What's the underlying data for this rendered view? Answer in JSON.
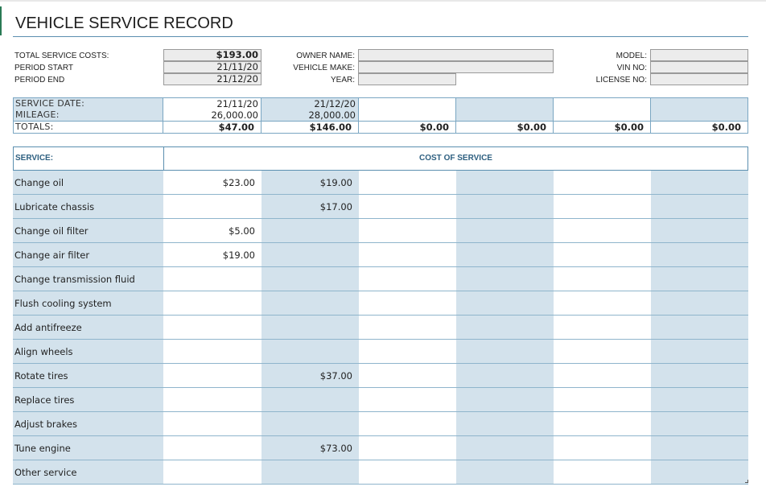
{
  "title": "VEHICLE SERVICE RECORD",
  "summary": {
    "total_service_costs_label": "TOTAL SERVICE COSTS:",
    "total_service_costs_value": "$193.00",
    "period_start_label": "PERIOD START",
    "period_start_value": "21/11/20",
    "period_end_label": "PERIOD END",
    "period_end_value": "21/12/20"
  },
  "owner": {
    "owner_name_label": "OWNER NAME:",
    "owner_name_value": "",
    "vehicle_make_label": "VEHICLE MAKE:",
    "vehicle_make_value": "",
    "year_label": "YEAR:",
    "year_value": ""
  },
  "vehicle": {
    "model_label": "MODEL:",
    "model_value": "",
    "vin_label": "VIN NO:",
    "vin_value": "",
    "license_label": "LICENSE NO:",
    "license_value": ""
  },
  "service_dates": {
    "service_date_label": "SERVICE DATE:",
    "mileage_label": "MILEAGE:",
    "totals_label": "TOTALS:",
    "columns": [
      {
        "date": "21/11/20",
        "mileage": "26,000.00",
        "total": "$47.00"
      },
      {
        "date": "21/12/20",
        "mileage": "28,000.00",
        "total": "$146.00"
      },
      {
        "date": "",
        "mileage": "",
        "total": "$0.00"
      },
      {
        "date": "",
        "mileage": "",
        "total": "$0.00"
      },
      {
        "date": "",
        "mileage": "",
        "total": "$0.00"
      },
      {
        "date": "",
        "mileage": "",
        "total": "$0.00"
      }
    ]
  },
  "services": {
    "service_header": "SERVICE:",
    "cost_header": "COST OF SERVICE",
    "rows": [
      {
        "name": "Change oil",
        "costs": [
          "$23.00",
          "$19.00",
          "",
          "",
          "",
          ""
        ]
      },
      {
        "name": "Lubricate chassis",
        "costs": [
          "",
          "$17.00",
          "",
          "",
          "",
          ""
        ]
      },
      {
        "name": "Change oil filter",
        "costs": [
          "$5.00",
          "",
          "",
          "",
          "",
          ""
        ]
      },
      {
        "name": "Change air filter",
        "costs": [
          "$19.00",
          "",
          "",
          "",
          "",
          ""
        ]
      },
      {
        "name": "Change transmission fluid",
        "costs": [
          "",
          "",
          "",
          "",
          "",
          ""
        ]
      },
      {
        "name": "Flush cooling system",
        "costs": [
          "",
          "",
          "",
          "",
          "",
          ""
        ]
      },
      {
        "name": "Add antifreeze",
        "costs": [
          "",
          "",
          "",
          "",
          "",
          ""
        ]
      },
      {
        "name": "Align wheels",
        "costs": [
          "",
          "",
          "",
          "",
          "",
          ""
        ]
      },
      {
        "name": "Rotate tires",
        "costs": [
          "",
          "$37.00",
          "",
          "",
          "",
          ""
        ]
      },
      {
        "name": "Replace tires",
        "costs": [
          "",
          "",
          "",
          "",
          "",
          ""
        ]
      },
      {
        "name": "Adjust brakes",
        "costs": [
          "",
          "",
          "",
          "",
          "",
          ""
        ]
      },
      {
        "name": "Tune engine",
        "costs": [
          "",
          "$73.00",
          "",
          "",
          "",
          ""
        ]
      },
      {
        "name": "Other service",
        "costs": [
          "",
          "",
          "",
          "",
          "",
          ""
        ]
      }
    ]
  },
  "colors": {
    "accent_green": "#2a7a55",
    "header_blue_text": "#2d5f80",
    "light_blue_fill": "#d3e2ec",
    "border_blue": "#7aa6c2"
  }
}
